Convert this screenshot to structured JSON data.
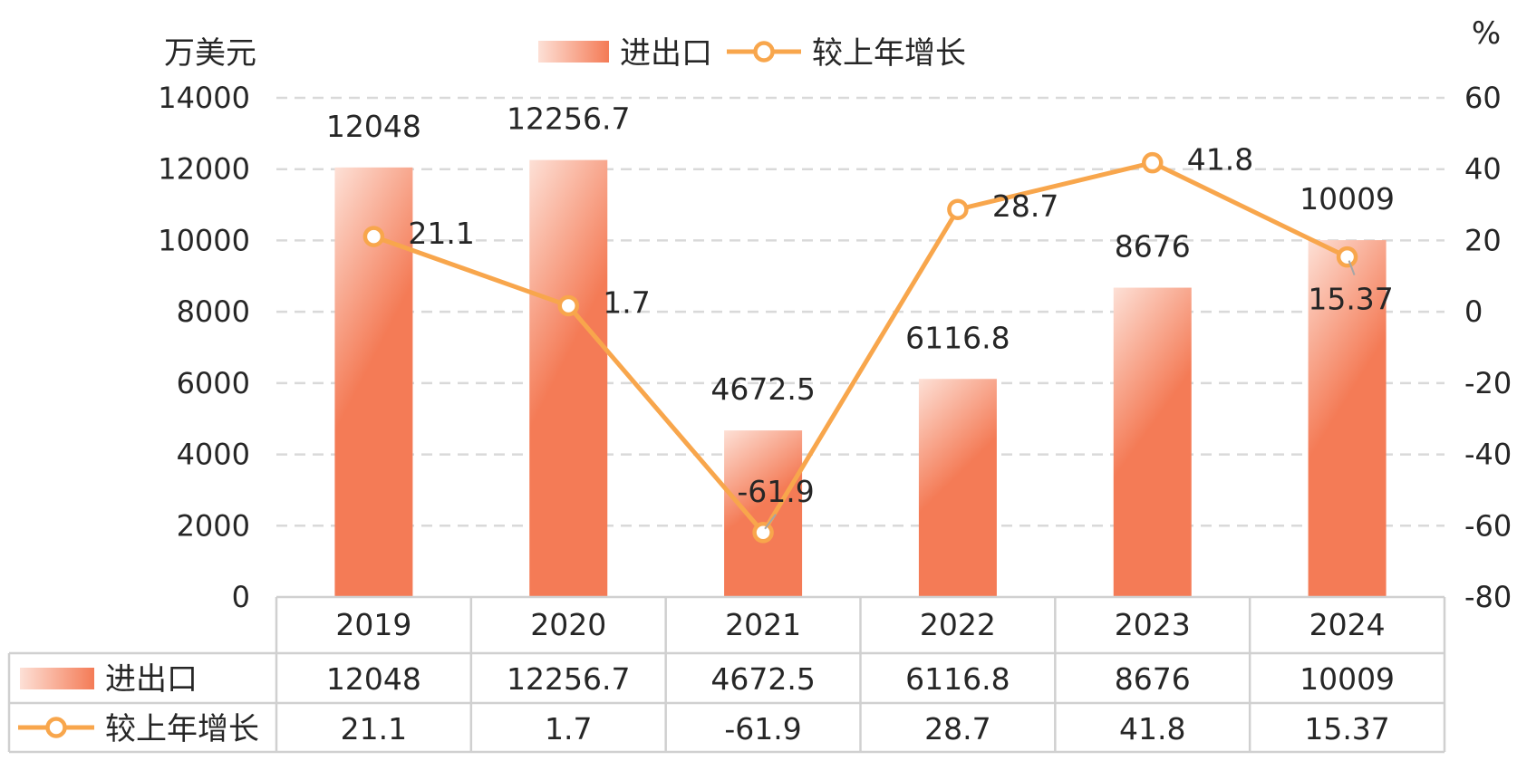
{
  "chart_data": {
    "type": "bar+line",
    "title": "",
    "y_left_unit": "万美元",
    "y_right_unit": "%",
    "categories": [
      "2019",
      "2020",
      "2021",
      "2022",
      "2023",
      "2024"
    ],
    "series": [
      {
        "name": "进出口",
        "type": "bar",
        "axis": "left",
        "values": [
          12048,
          12256.7,
          4672.5,
          6116.8,
          8676,
          10009
        ],
        "color": "#f47b56",
        "color_light": "#fde0d6"
      },
      {
        "name": "较上年增长",
        "type": "line",
        "axis": "right",
        "values": [
          21.1,
          1.7,
          -61.9,
          28.7,
          41.8,
          15.37
        ],
        "color": "#f8a64c"
      }
    ],
    "bar_labels": [
      "12048",
      "12256.7",
      "4672.5",
      "6116.8",
      "8676",
      "10009"
    ],
    "line_labels": [
      "21.1",
      "1.7",
      "-61.9",
      "28.7",
      "41.8",
      "15.37"
    ],
    "y_left_ticks": [
      "14000",
      "12000",
      "10000",
      "8000",
      "6000",
      "4000",
      "2000",
      "0"
    ],
    "y_right_ticks": [
      "60",
      "40",
      "20",
      "0",
      "-20",
      "-40",
      "-60",
      "-80"
    ],
    "ylim_left": [
      0,
      14000
    ],
    "ylim_right": [
      -80,
      60
    ],
    "grid": "dashed",
    "legend_position": "top-center",
    "data_table": true,
    "table_rows": [
      {
        "name": "进出口",
        "values": [
          "12048",
          "12256.7",
          "4672.5",
          "6116.8",
          "8676",
          "10009"
        ]
      },
      {
        "name": "较上年增长",
        "values": [
          "21.1",
          "1.7",
          "-61.9",
          "28.7",
          "41.8",
          "15.37"
        ]
      }
    ]
  }
}
